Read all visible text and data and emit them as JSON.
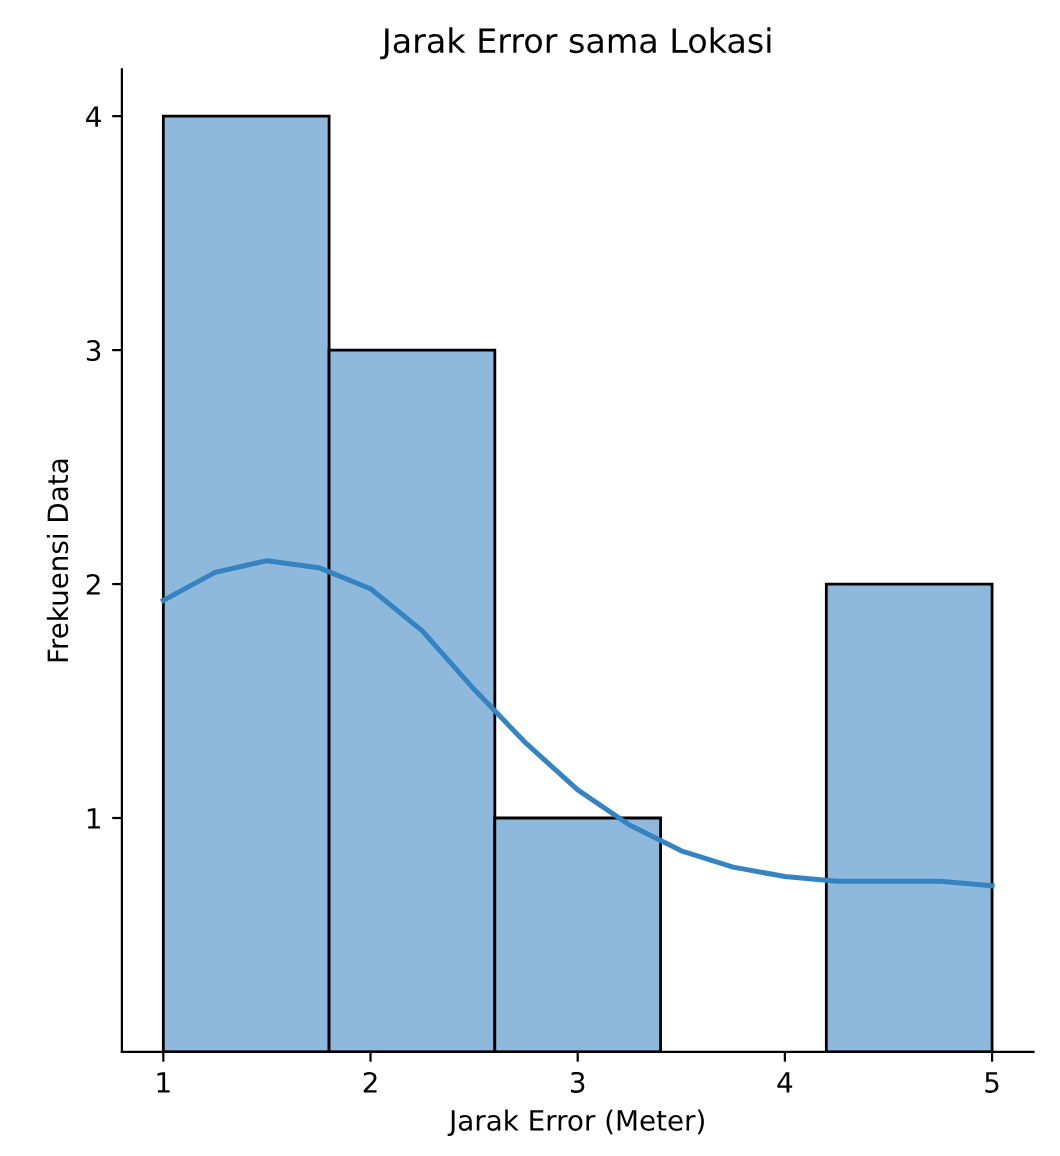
{
  "chart_data": {
    "type": "histogram",
    "title": "Jarak Error sama Lokasi",
    "xlabel": "Jarak Error (Meter)",
    "ylabel": "Frekuensi Data",
    "bins": [
      1,
      1.8,
      2.6,
      3.4,
      4.2,
      5
    ],
    "values": [
      4,
      3,
      1,
      0,
      2
    ],
    "color": "#8fb9dc",
    "series": [
      {
        "type": "line",
        "color": "#3583c0",
        "x": [
          1,
          1.25,
          1.5,
          1.75,
          2,
          2.25,
          2.5,
          2.75,
          3,
          3.25,
          3.5,
          3.75,
          4,
          4.25,
          4.5,
          4.75,
          5
        ],
        "values": [
          1.93,
          2.05,
          2.1,
          2.07,
          1.98,
          1.8,
          1.55,
          1.32,
          1.12,
          0.97,
          0.86,
          0.79,
          0.75,
          0.73,
          0.73,
          0.73,
          0.71
        ]
      }
    ],
    "xlim": [
      0.8,
      5.2
    ],
    "ylim": [
      0,
      4.2
    ],
    "xticks": [
      1,
      2,
      3,
      4,
      5
    ],
    "yticks": [
      1,
      2,
      3,
      4
    ],
    "grid": false,
    "legend": false
  }
}
